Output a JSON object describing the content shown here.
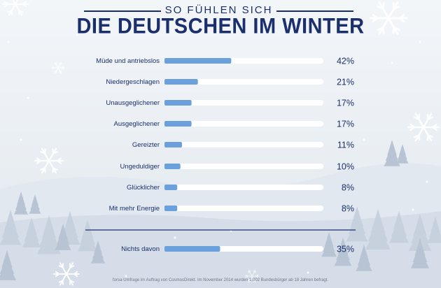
{
  "header": {
    "subtitle": "SO FÜHLEN SICH",
    "title": "DIE DEUTSCHEN IM WINTER"
  },
  "footnote": "forsa-Umfrage im Auftrag von CosmosDirekt. Im November 2014 wurden 1.002 Bundesbürger ab 18 Jahren befragt.",
  "colors": {
    "navy": "#1a2f6b",
    "bar": "#6aa0dc",
    "track": "#ffffff"
  },
  "chart_data": {
    "type": "bar",
    "orientation": "horizontal",
    "categories": [
      "Müde und antriebslos",
      "Niedergeschlagen",
      "Unausgeglichener",
      "Ausgeglichener",
      "Gereizter",
      "Ungeduldiger",
      "Glücklicher",
      "Mit mehr Energie",
      "Nichts davon"
    ],
    "values": [
      42,
      21,
      17,
      17,
      11,
      10,
      8,
      8,
      35
    ],
    "value_labels": [
      "42%",
      "21%",
      "17%",
      "17%",
      "11%",
      "10%",
      "8%",
      "8%",
      "35%"
    ],
    "xlim": [
      0,
      100
    ],
    "grid": false
  }
}
